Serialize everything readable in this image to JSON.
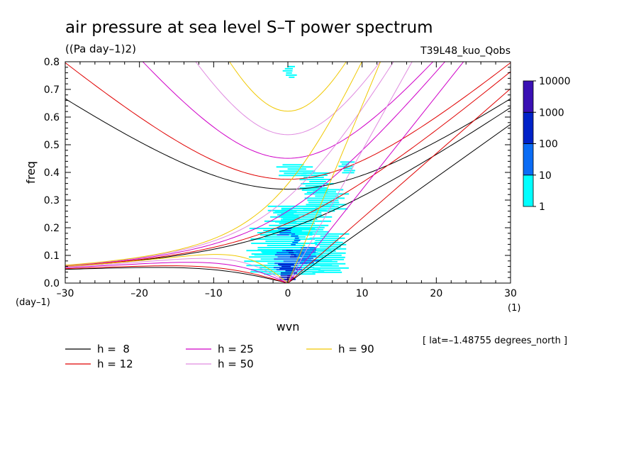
{
  "chart_data": {
    "type": "heatmap",
    "title": "air pressure at sea level S–T power spectrum",
    "subtitle": "((Pa day–1)2)",
    "run_label": "T39L48_kuo_Qobs",
    "xlabel": "wvn",
    "ylabel": "freq",
    "x_unit": "(1)",
    "y_unit": "(day–1)",
    "footnote": "[ lat=–1.48755 degrees_north ]",
    "xlim": [
      -30,
      30
    ],
    "ylim": [
      0,
      0.8
    ],
    "x_ticks": [
      -30,
      -20,
      -10,
      0,
      10,
      20,
      30
    ],
    "x_tick_labels": [
      "–30",
      "–20",
      "–10",
      "0",
      "10",
      "20",
      "30"
    ],
    "y_ticks": [
      0,
      0.1,
      0.2,
      0.3,
      0.4,
      0.5,
      0.6,
      0.7,
      0.8
    ],
    "y_tick_labels": [
      "0.0",
      "0.1",
      "0.2",
      "0.3",
      "0.4",
      "0.5",
      "0.6",
      "0.7",
      "0.8"
    ],
    "colorbar": {
      "levels": [
        1,
        10,
        100,
        1000,
        10000
      ],
      "labels": [
        "1",
        "10",
        "100",
        "1000",
        "10000"
      ],
      "colors": [
        "#00ffff",
        "#0a6cf5",
        "#0022c8",
        "#3a10b4"
      ]
    },
    "dispersion_curves": [
      {
        "name": "h =  8",
        "h": 8,
        "color": "#000000"
      },
      {
        "name": "h = 12",
        "h": 12,
        "color": "#e00000"
      },
      {
        "name": "h = 25",
        "h": 25,
        "color": "#d000c8"
      },
      {
        "name": "h = 50",
        "h": 50,
        "color": "#e08ce0"
      },
      {
        "name": "h = 90",
        "h": 90,
        "color": "#f0c800"
      }
    ],
    "spectrum_blobs": [
      {
        "wvn": [
          -0.5,
          1.0
        ],
        "freq": [
          0.745,
          0.785
        ],
        "level": 1
      },
      {
        "wvn": [
          -1.5,
          3.5
        ],
        "freq": [
          0.39,
          0.43
        ],
        "level": 1
      },
      {
        "wvn": [
          1.5,
          6.0
        ],
        "freq": [
          0.33,
          0.4
        ],
        "level": 1
      },
      {
        "wvn": [
          7.0,
          9.0
        ],
        "freq": [
          0.4,
          0.44
        ],
        "level": 1
      },
      {
        "wvn": [
          2.0,
          8.0
        ],
        "freq": [
          0.26,
          0.34
        ],
        "level": 1
      },
      {
        "wvn": [
          -3.0,
          6.0
        ],
        "freq": [
          0.18,
          0.28
        ],
        "level": 1
      },
      {
        "wvn": [
          -5.0,
          4.0
        ],
        "freq": [
          0.1,
          0.2
        ],
        "level": 1
      },
      {
        "wvn": [
          -6.0,
          6.0
        ],
        "freq": [
          0.03,
          0.12
        ],
        "level": 1
      },
      {
        "wvn": [
          3.0,
          8.0
        ],
        "freq": [
          0.04,
          0.18
        ],
        "level": 1
      },
      {
        "wvn": [
          -1.5,
          1.5
        ],
        "freq": [
          0.22,
          0.27
        ],
        "level": 1
      },
      {
        "wvn": [
          -1.5,
          0.5
        ],
        "freq": [
          0.17,
          0.2
        ],
        "level": 10
      },
      {
        "wvn": [
          0.5,
          1.5
        ],
        "freq": [
          0.14,
          0.18
        ],
        "level": 10
      },
      {
        "wvn": [
          -2.0,
          2.5
        ],
        "freq": [
          0.05,
          0.12
        ],
        "level": 10
      },
      {
        "wvn": [
          1.0,
          4.0
        ],
        "freq": [
          0.07,
          0.13
        ],
        "level": 10
      },
      {
        "wvn": [
          -1.2,
          1.2
        ],
        "freq": [
          0.01,
          0.07
        ],
        "level": 100
      },
      {
        "wvn": [
          0.0,
          1.0
        ],
        "freq": [
          0.09,
          0.12
        ],
        "level": 100
      },
      {
        "wvn": [
          -0.5,
          0.6
        ],
        "freq": [
          0.0,
          0.03
        ],
        "level": 1000
      }
    ],
    "legend_placement": "bottom, below plot"
  }
}
